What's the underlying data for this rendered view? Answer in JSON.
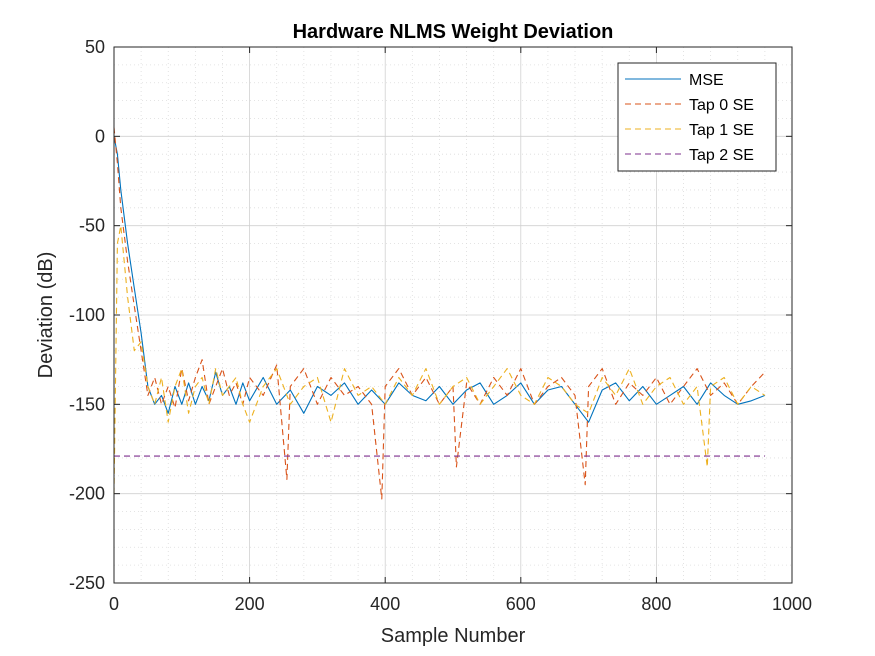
{
  "chart_data": {
    "type": "line",
    "title": "Hardware NLMS Weight Deviation",
    "xlabel": "Sample Number",
    "ylabel": "Deviation (dB)",
    "xlim": [
      0,
      1000
    ],
    "ylim": [
      -250,
      50
    ],
    "xticks": [
      0,
      200,
      400,
      600,
      800,
      1000
    ],
    "yticks": [
      -250,
      -200,
      -150,
      -100,
      -50,
      0,
      50
    ],
    "grid": true,
    "minor_grid": true,
    "legend_location": "top-right",
    "series": [
      {
        "name": "MSE",
        "color": "#0072BD",
        "style": "solid",
        "x": [
          0,
          5,
          10,
          20,
          30,
          40,
          50,
          60,
          70,
          80,
          90,
          100,
          110,
          120,
          130,
          140,
          150,
          160,
          170,
          180,
          190,
          200,
          220,
          240,
          260,
          280,
          300,
          320,
          340,
          360,
          380,
          400,
          420,
          440,
          460,
          480,
          500,
          520,
          540,
          560,
          580,
          600,
          620,
          640,
          660,
          680,
          700,
          720,
          740,
          760,
          780,
          800,
          820,
          840,
          860,
          880,
          900,
          920,
          940,
          960
        ],
        "y": [
          0,
          -10,
          -30,
          -60,
          -85,
          -110,
          -140,
          -150,
          -145,
          -155,
          -140,
          -150,
          -138,
          -150,
          -140,
          -148,
          -132,
          -145,
          -140,
          -150,
          -138,
          -148,
          -135,
          -150,
          -142,
          -155,
          -140,
          -145,
          -138,
          -150,
          -142,
          -150,
          -138,
          -145,
          -148,
          -140,
          -150,
          -142,
          -138,
          -150,
          -145,
          -138,
          -150,
          -142,
          -140,
          -150,
          -160,
          -142,
          -138,
          -148,
          -140,
          -150,
          -145,
          -140,
          -150,
          -138,
          -145,
          -150,
          -148,
          -145
        ]
      },
      {
        "name": "Tap 0 SE",
        "color": "#D95319",
        "style": "dashed",
        "x": [
          0,
          5,
          10,
          20,
          30,
          40,
          50,
          60,
          70,
          80,
          90,
          100,
          110,
          120,
          130,
          140,
          150,
          160,
          170,
          180,
          190,
          200,
          220,
          240,
          255,
          260,
          280,
          300,
          320,
          340,
          360,
          380,
          395,
          400,
          420,
          440,
          460,
          480,
          500,
          505,
          520,
          540,
          560,
          580,
          600,
          620,
          640,
          660,
          680,
          695,
          700,
          720,
          740,
          760,
          780,
          800,
          820,
          840,
          860,
          880,
          900,
          920,
          940,
          960
        ],
        "y": [
          5,
          -15,
          -40,
          -70,
          -95,
          -120,
          -145,
          -135,
          -150,
          -140,
          -152,
          -130,
          -148,
          -135,
          -125,
          -150,
          -140,
          -130,
          -145,
          -138,
          -150,
          -135,
          -145,
          -128,
          -192,
          -140,
          -130,
          -150,
          -135,
          -145,
          -140,
          -150,
          -203,
          -140,
          -130,
          -145,
          -135,
          -150,
          -140,
          -185,
          -138,
          -150,
          -135,
          -145,
          -130,
          -150,
          -140,
          -135,
          -145,
          -195,
          -140,
          -130,
          -150,
          -138,
          -145,
          -135,
          -150,
          -140,
          -130,
          -145,
          -138,
          -150,
          -140,
          -132
        ]
      },
      {
        "name": "Tap 1 SE",
        "color": "#EDB120",
        "style": "dashed",
        "x": [
          0,
          5,
          10,
          20,
          30,
          40,
          50,
          60,
          70,
          80,
          90,
          100,
          110,
          120,
          130,
          140,
          150,
          160,
          170,
          180,
          190,
          200,
          220,
          240,
          260,
          280,
          300,
          320,
          340,
          360,
          380,
          400,
          420,
          440,
          460,
          480,
          500,
          520,
          540,
          560,
          580,
          600,
          620,
          640,
          660,
          680,
          700,
          720,
          740,
          760,
          780,
          800,
          820,
          840,
          860,
          875,
          880,
          900,
          920,
          940,
          960
        ],
        "y": [
          -200,
          -60,
          -50,
          -90,
          -120,
          -115,
          -140,
          -150,
          -135,
          -160,
          -140,
          -130,
          -155,
          -140,
          -135,
          -150,
          -130,
          -145,
          -140,
          -135,
          -150,
          -160,
          -140,
          -130,
          -150,
          -140,
          -135,
          -160,
          -130,
          -145,
          -140,
          -150,
          -135,
          -145,
          -130,
          -150,
          -140,
          -135,
          -150,
          -140,
          -130,
          -145,
          -150,
          -135,
          -140,
          -150,
          -155,
          -135,
          -145,
          -130,
          -150,
          -140,
          -135,
          -150,
          -140,
          -185,
          -140,
          -135,
          -150,
          -140,
          -145
        ]
      },
      {
        "name": "Tap 2 SE",
        "color": "#7E2F8E",
        "style": "dashed",
        "x": [
          0,
          960
        ],
        "y": [
          -179,
          -179
        ]
      }
    ]
  }
}
